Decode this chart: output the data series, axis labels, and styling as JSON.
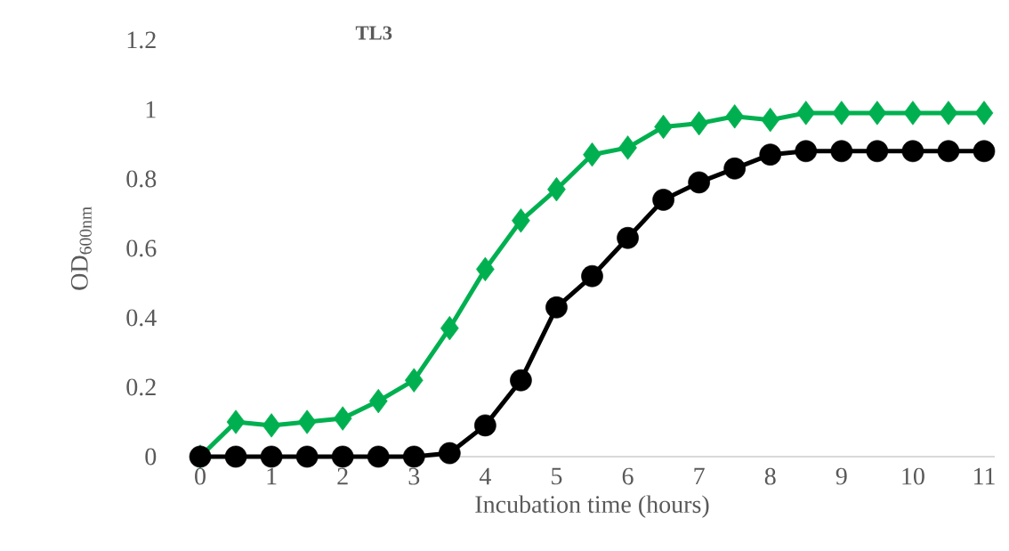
{
  "chart_data": {
    "type": "line",
    "title": "TL3",
    "xlabel": "Incubation time (hours)",
    "ylabel": "OD$_{600nm}$",
    "x": [
      0,
      0.5,
      1,
      1.5,
      2,
      2.5,
      3,
      3.5,
      4,
      4.5,
      5,
      5.5,
      6,
      6.5,
      7,
      7.5,
      8,
      8.5,
      9,
      9.5,
      10,
      10.5,
      11
    ],
    "xlim": [
      -0.15,
      11.15
    ],
    "xticks": [
      0,
      1,
      2,
      3,
      4,
      5,
      6,
      7,
      8,
      9,
      10,
      11
    ],
    "ylim": [
      0,
      1.2
    ],
    "yticks": [
      0,
      0.2,
      0.4,
      0.6,
      0.8,
      1,
      1.2
    ],
    "series": [
      {
        "color": "#00b050",
        "marker": "diamond",
        "values": [
          0,
          0.1,
          0.09,
          0.1,
          0.11,
          0.16,
          0.22,
          0.37,
          0.54,
          0.68,
          0.77,
          0.87,
          0.89,
          0.95,
          0.96,
          0.98,
          0.97,
          0.99,
          0.99,
          0.99,
          0.99,
          0.99,
          0.99
        ]
      },
      {
        "color": "#000000",
        "marker": "circle",
        "values": [
          0,
          0,
          0,
          0,
          0,
          0,
          0,
          0.01,
          0.09,
          0.22,
          0.43,
          0.52,
          0.63,
          0.74,
          0.79,
          0.83,
          0.87,
          0.88,
          0.88,
          0.88,
          0.88,
          0.88,
          0.88
        ]
      }
    ]
  }
}
